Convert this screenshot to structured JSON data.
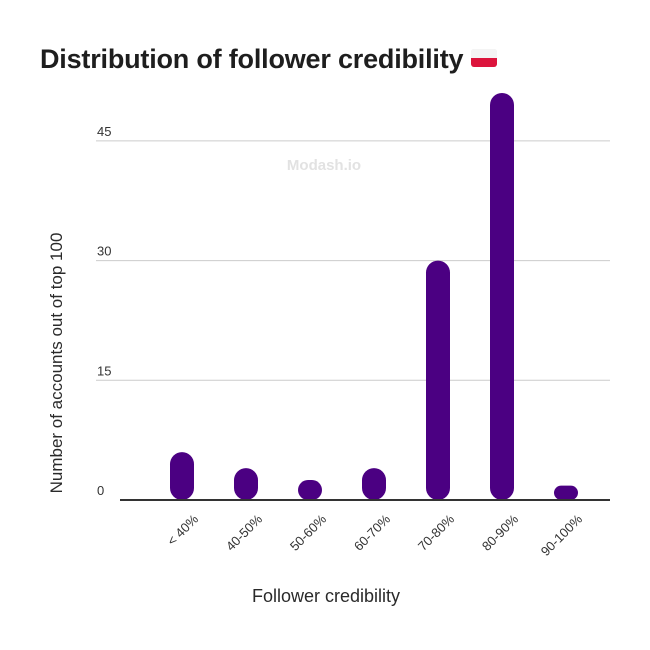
{
  "chart_data": {
    "type": "bar",
    "title": "Distribution of follower credibility",
    "title_icon": "poland-flag-icon",
    "watermark": "Modash.io",
    "xlabel": "Follower credibility",
    "ylabel": "Number of accounts out of top 100",
    "categories": [
      "< 40%",
      "40-50%",
      "50-60%",
      "60-70%",
      "70-80%",
      "80-90%",
      "90-100%"
    ],
    "values": [
      6,
      4,
      2.5,
      4,
      30,
      51,
      1.5
    ],
    "yticks": [
      0,
      15,
      30,
      45
    ],
    "ylim": [
      0,
      51
    ],
    "grid": true,
    "bar_color": "#4b0082",
    "grid_color": "#cccccc",
    "axis_color": "#333333",
    "watermark_color": "#e2e2e2"
  }
}
